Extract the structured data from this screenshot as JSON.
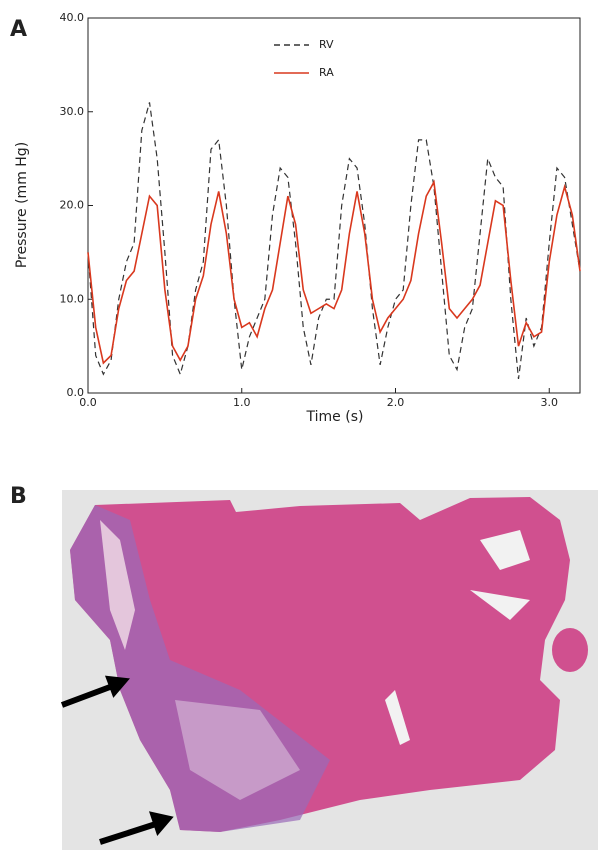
{
  "panel_labels": [
    "A",
    "B"
  ],
  "chart_data": {
    "type": "line",
    "xlabel": "Time (s)",
    "ylabel": "Pressure (mm Hg)",
    "x": [
      0,
      0.05,
      0.1,
      0.15,
      0.2,
      0.25,
      0.3,
      0.35,
      0.4,
      0.45,
      0.5,
      0.55,
      0.6,
      0.65,
      0.7,
      0.75,
      0.8,
      0.85,
      0.9,
      0.95,
      1.0,
      1.05,
      1.1,
      1.15,
      1.2,
      1.25,
      1.3,
      1.35,
      1.4,
      1.45,
      1.5,
      1.55,
      1.6,
      1.65,
      1.7,
      1.75,
      1.8,
      1.85,
      1.9,
      1.95,
      2.0,
      2.05,
      2.1,
      2.15,
      2.2,
      2.25,
      2.3,
      2.35,
      2.4,
      2.45,
      2.5,
      2.55,
      2.6,
      2.65,
      2.7,
      2.75,
      2.8,
      2.85,
      2.9,
      2.95,
      3.0,
      3.05,
      3.1,
      3.15,
      3.2
    ],
    "series": [
      {
        "name": "RV",
        "color": "#333333",
        "linestyle": "dashed",
        "values": [
          15,
          4,
          2,
          3.5,
          10,
          14,
          16,
          28,
          31,
          25,
          15,
          4,
          2,
          5,
          11,
          14,
          26,
          27,
          20,
          10,
          2.5,
          6,
          8,
          10,
          19,
          24,
          23,
          16,
          7,
          3,
          8,
          10,
          10,
          20,
          25,
          24,
          18,
          9,
          3,
          7,
          10,
          11,
          20,
          27,
          27,
          22,
          13,
          4,
          2.5,
          7,
          9,
          17,
          25,
          23,
          22,
          10,
          1.5,
          8,
          5,
          7,
          16,
          24,
          23,
          18,
          13
        ]
      },
      {
        "name": "RA",
        "color": "#d9381e",
        "linestyle": "solid",
        "values": [
          15,
          7,
          3.2,
          4,
          9,
          12,
          13,
          17,
          21,
          20,
          11,
          5,
          3.5,
          5,
          10,
          12.5,
          18,
          21.5,
          17,
          10,
          7,
          7.5,
          6,
          9,
          11,
          16,
          21,
          18,
          11,
          8.5,
          9,
          9.5,
          9,
          11,
          17,
          21.5,
          17,
          10,
          6.5,
          8,
          9,
          10,
          12,
          17,
          21,
          22.5,
          16,
          9,
          8,
          9,
          10,
          11.5,
          16,
          20.5,
          20,
          12,
          5,
          7.5,
          6,
          6.5,
          14,
          19,
          22,
          19,
          13
        ]
      }
    ],
    "xlim": [
      0,
      3.2
    ],
    "ylim": [
      0,
      40
    ],
    "xticks": [
      {
        "value": 0,
        "label": "0.0"
      },
      {
        "value": 1,
        "label": "1.0"
      },
      {
        "value": 2,
        "label": "2.0"
      },
      {
        "value": 3,
        "label": "3.0"
      }
    ],
    "yticks": [
      {
        "value": 0,
        "label": "0.0"
      },
      {
        "value": 10,
        "label": "10.0"
      },
      {
        "value": 20,
        "label": "20.0"
      },
      {
        "value": 30,
        "label": "30.0"
      },
      {
        "value": 40,
        "label": "40.0"
      }
    ],
    "legend": "upper center"
  }
}
